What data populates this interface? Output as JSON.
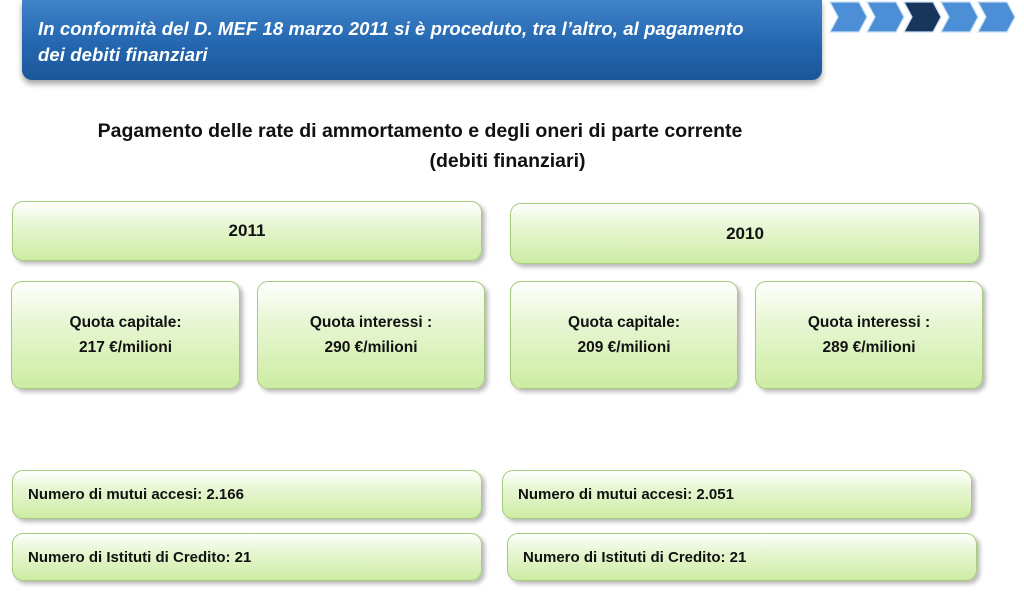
{
  "header": {
    "banner_line1": "In conformità del D. MEF 18 marzo 2011 si è proceduto, tra l’altro, al pagamento",
    "banner_line2": "dei debiti finanziari",
    "progress_steps": {
      "total": 5,
      "active_step": 3
    },
    "colors": {
      "banner": "#2467b0",
      "chevron": "#4d8fd6",
      "chevron_active": "#18365c"
    }
  },
  "title": {
    "line1": "Pagamento delle rate di ammortamento e degli oneri di parte corrente",
    "line2": "(debiti  finanziari)"
  },
  "years": [
    {
      "year": "2011",
      "capitale_label": "Quota capitale:",
      "capitale_value": "217 €/milioni",
      "interessi_label": "Quota interessi :",
      "interessi_value": "290 €/milioni",
      "mutui": "Numero di mutui accesi: 2.166",
      "istituti": "Numero di Istituti di Credito: 21"
    },
    {
      "year": "2010",
      "capitale_label": "Quota capitale:",
      "capitale_value": "209 €/milioni",
      "interessi_label": "Quota interessi :",
      "interessi_value": "289 €/milioni",
      "mutui": "Numero di mutui accesi: 2.051",
      "istituti": "Numero di Istituti di Credito: 21"
    }
  ],
  "box_color": "#cdeca3"
}
